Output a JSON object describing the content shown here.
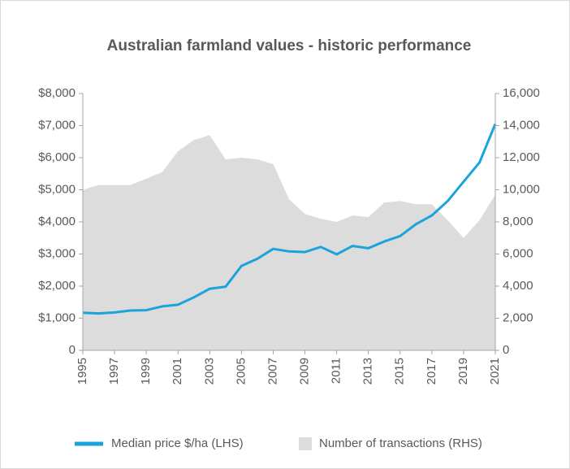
{
  "chart_data": {
    "type": "line-area",
    "title": "Australian farmland values - historic performance",
    "x": [
      1995,
      1996,
      1997,
      1998,
      1999,
      2000,
      2001,
      2002,
      2003,
      2004,
      2005,
      2006,
      2007,
      2008,
      2009,
      2010,
      2011,
      2012,
      2013,
      2014,
      2015,
      2016,
      2017,
      2018,
      2019,
      2020,
      2021
    ],
    "xlim": [
      1995,
      2021
    ],
    "xticks": [
      1995,
      1997,
      1999,
      2001,
      2003,
      2005,
      2007,
      2009,
      2011,
      2013,
      2015,
      2017,
      2019,
      2021
    ],
    "ylim": [
      0,
      8000
    ],
    "yticks": [
      0,
      {
        "value": 1000,
        "label": "$1,000"
      },
      {
        "value": 2000,
        "label": "$2,000"
      },
      {
        "value": 3000,
        "label": "$3,000"
      },
      {
        "value": 4000,
        "label": "$4,000"
      },
      {
        "value": 5000,
        "label": "$5,000"
      },
      {
        "value": 6000,
        "label": "$6,000"
      },
      {
        "value": 7000,
        "label": "$7,000"
      },
      {
        "value": 8000,
        "label": "$8,000"
      }
    ],
    "y2lim": [
      0,
      16000
    ],
    "y2ticks": [
      0,
      {
        "value": 2000,
        "label": "2,000"
      },
      {
        "value": 4000,
        "label": "4,000"
      },
      {
        "value": 6000,
        "label": "6,000"
      },
      {
        "value": 8000,
        "label": "8,000"
      },
      {
        "value": 10000,
        "label": "10,000"
      },
      {
        "value": 12000,
        "label": "12,000"
      },
      {
        "value": 14000,
        "label": "14,000"
      },
      {
        "value": 16000,
        "label": "16,000"
      }
    ],
    "series": [
      {
        "name": "Median price $/ha (LHS)",
        "type": "line",
        "color": "#1aa3dc",
        "axis": "y",
        "values": [
          1170,
          1150,
          1180,
          1240,
          1250,
          1370,
          1420,
          1650,
          1920,
          1980,
          2630,
          2850,
          3160,
          3080,
          3060,
          3220,
          2990,
          3250,
          3180,
          3390,
          3560,
          3930,
          4200,
          4650,
          5250,
          5850,
          7050
        ]
      },
      {
        "name": "Number of transactions (RHS)",
        "type": "area",
        "color": "#dcdcdc",
        "axis": "y2",
        "values": [
          10000,
          10300,
          10300,
          10300,
          10700,
          11100,
          12400,
          13100,
          13400,
          11900,
          12000,
          11900,
          11600,
          9400,
          8500,
          8200,
          8000,
          8400,
          8300,
          9200,
          9300,
          9100,
          9100,
          8100,
          7000,
          8100,
          9700
        ]
      }
    ]
  }
}
